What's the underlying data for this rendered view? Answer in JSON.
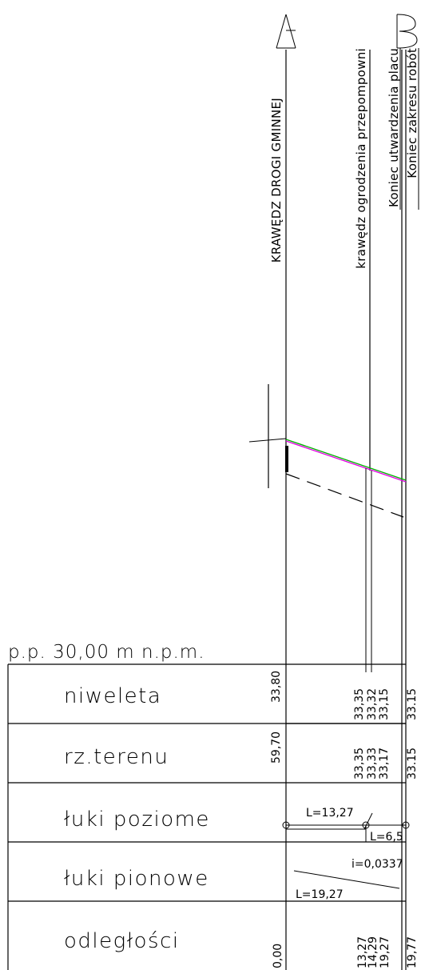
{
  "axes": {
    "a_label": "A",
    "b_label": "B"
  },
  "features": {
    "road_edge": "KRAWĘDZ DROGI GMINNEJ",
    "fence_edge": "krawędz ogrodzenia przepompowni",
    "pavement_end": "Koniec utwardzenia placu",
    "works_end": "Koniec zakresu robót"
  },
  "datum": {
    "text": "p.p. 30,00 m n.p.m."
  },
  "rows": {
    "niweleta": {
      "label": "niweleta",
      "values": [
        "33,80",
        "33,35",
        "33,32",
        "33,15",
        "33.15"
      ]
    },
    "terrain": {
      "label": "rz.terenu",
      "values": [
        "59,70",
        "33,35",
        "33,33",
        "33,17",
        "33.15"
      ]
    },
    "horizontal": {
      "label": "łuki poziome",
      "l1": "L=13,27",
      "l2": "L=6,5"
    },
    "vertical": {
      "label": "łuki pionowe",
      "slope": "i=0,0337",
      "length": "L=19,27"
    },
    "distances": {
      "label": "odległości",
      "values": [
        "0,00",
        "13,27",
        "14,29",
        "19,27",
        "19,77"
      ]
    }
  },
  "colors": {
    "line": "#000000",
    "profile_green": "#00b000",
    "profile_magenta": "#e000e0"
  }
}
